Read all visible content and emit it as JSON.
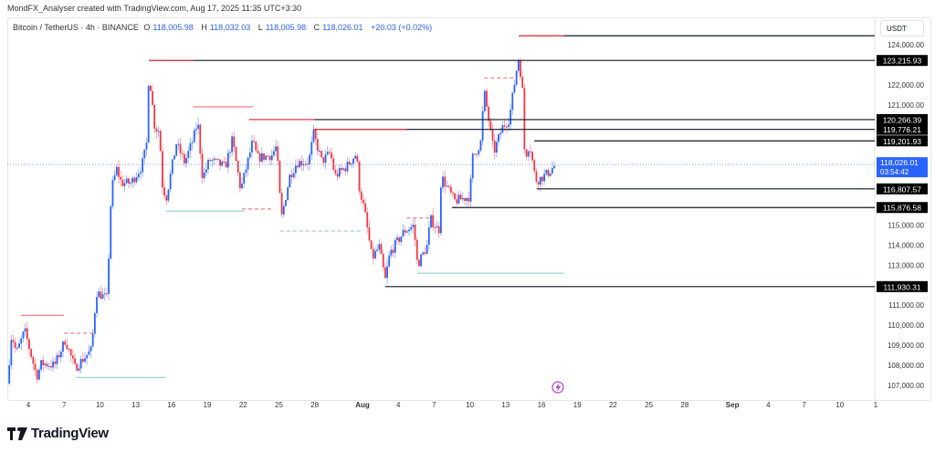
{
  "credit": "MondFX_Analyser created with TradingView.com, Aug 17, 2025 11:35 UTC+3:30",
  "legend": {
    "symbol": "Bitcoin / TetherUS · 4h · BINANCE",
    "o_label": "O",
    "o": "118,005.98",
    "h_label": "H",
    "h": "118,032.03",
    "l_label": "L",
    "l": "118,005.98",
    "c_label": "C",
    "c": "118,026.01",
    "change": "+20.03 (+0.02%)"
  },
  "currency": "USDT",
  "current_price": {
    "value": "118,026.01",
    "countdown": "03:54:42"
  },
  "brand": "TradingView",
  "colors": {
    "up": "#2962ff",
    "down": "#f23645",
    "level": "#131722",
    "teal": "#5fbfae",
    "label_bg": "#000000",
    "current": "#2962ff"
  },
  "chart_data": {
    "type": "candlestick",
    "timeframe": "4h",
    "ylim": [
      106600,
      124700
    ],
    "xlim_days_from_jul1": [
      0.6,
      73.5
    ],
    "price_ticks": [
      "124,000.00",
      "122,000.00",
      "121,000.00",
      "115,000.00",
      "114,000.00",
      "113,000.00",
      "111,000.00",
      "110,000.00",
      "109,000.00",
      "108,000.00",
      "107,000.00"
    ],
    "price_tick_values": [
      124000,
      122000,
      121000,
      115000,
      114000,
      113000,
      111000,
      110000,
      109000,
      108000,
      107000
    ],
    "time_ticks": [
      {
        "label": "4",
        "day": 3
      },
      {
        "label": "7",
        "day": 6
      },
      {
        "label": "10",
        "day": 9
      },
      {
        "label": "13",
        "day": 12
      },
      {
        "label": "16",
        "day": 15
      },
      {
        "label": "19",
        "day": 18
      },
      {
        "label": "22",
        "day": 21
      },
      {
        "label": "25",
        "day": 24
      },
      {
        "label": "28",
        "day": 27
      },
      {
        "label": "Aug",
        "day": 31
      },
      {
        "label": "4",
        "day": 34
      },
      {
        "label": "7",
        "day": 37
      },
      {
        "label": "10",
        "day": 40
      },
      {
        "label": "13",
        "day": 43
      },
      {
        "label": "16",
        "day": 46
      },
      {
        "label": "19",
        "day": 49
      },
      {
        "label": "22",
        "day": 52
      },
      {
        "label": "25",
        "day": 55
      },
      {
        "label": "28",
        "day": 58
      },
      {
        "label": "Sep",
        "day": 62
      },
      {
        "label": "4",
        "day": 65
      },
      {
        "label": "7",
        "day": 68
      },
      {
        "label": "10",
        "day": 71
      },
      {
        "label": "1",
        "day": 74
      }
    ],
    "price_path": [
      [
        1.24,
        107090
      ],
      [
        1.6,
        109600
      ],
      [
        2.0,
        108600
      ],
      [
        2.7,
        109730
      ],
      [
        3.7,
        107450
      ],
      [
        4.1,
        108100
      ],
      [
        5.2,
        108000
      ],
      [
        6.1,
        109280
      ],
      [
        6.9,
        107870
      ],
      [
        8.3,
        108780
      ],
      [
        8.7,
        111650
      ],
      [
        9.6,
        111330
      ],
      [
        9.96,
        116800
      ],
      [
        10.4,
        117800
      ],
      [
        10.8,
        117100
      ],
      [
        11.6,
        117100
      ],
      [
        12.5,
        117940
      ],
      [
        12.9,
        118940
      ],
      [
        13.1,
        122680
      ],
      [
        13.6,
        119850
      ],
      [
        14.0,
        119700
      ],
      [
        14.2,
        117100
      ],
      [
        14.55,
        116340
      ],
      [
        15.4,
        119080
      ],
      [
        16.1,
        118120
      ],
      [
        16.8,
        119260
      ],
      [
        17.2,
        120170
      ],
      [
        17.6,
        117350
      ],
      [
        18.2,
        118260
      ],
      [
        19.5,
        117900
      ],
      [
        20.1,
        119260
      ],
      [
        20.8,
        116750
      ],
      [
        21.8,
        119170
      ],
      [
        22.2,
        118350
      ],
      [
        23.4,
        118490
      ],
      [
        23.8,
        118940
      ],
      [
        24.2,
        115300
      ],
      [
        24.9,
        117440
      ],
      [
        25.5,
        118120
      ],
      [
        26.5,
        118170
      ],
      [
        26.9,
        119530
      ],
      [
        27.6,
        118170
      ],
      [
        28.3,
        118620
      ],
      [
        28.7,
        117440
      ],
      [
        29.7,
        117940
      ],
      [
        30.5,
        118580
      ],
      [
        30.7,
        116980
      ],
      [
        31.2,
        115610
      ],
      [
        31.8,
        113330
      ],
      [
        32.4,
        113920
      ],
      [
        32.9,
        112240
      ],
      [
        33.3,
        113610
      ],
      [
        34.5,
        114700
      ],
      [
        35.3,
        114980
      ],
      [
        35.6,
        113020
      ],
      [
        36.4,
        113920
      ],
      [
        36.7,
        115300
      ],
      [
        37.4,
        114700
      ],
      [
        37.6,
        117440
      ],
      [
        38.7,
        116200
      ],
      [
        40.0,
        116430
      ],
      [
        40.2,
        118350
      ],
      [
        40.9,
        119080
      ],
      [
        41.2,
        121670
      ],
      [
        42.0,
        118620
      ],
      [
        42.7,
        119850
      ],
      [
        43.3,
        120300
      ],
      [
        43.9,
        122720
      ],
      [
        44.1,
        123360
      ],
      [
        44.4,
        121810
      ],
      [
        44.6,
        118350
      ],
      [
        45.0,
        119080
      ],
      [
        45.5,
        117250
      ],
      [
        45.7,
        117250
      ],
      [
        46.5,
        117570
      ],
      [
        47.2,
        118026.01
      ]
    ],
    "levels": [
      {
        "price": 124450,
        "from_day": 44.1,
        "label": "",
        "red_to_day": 47.9
      },
      {
        "price": 123215.93,
        "from_day": 13.1,
        "label": "123,215.93",
        "red_to_day": 16.8
      },
      {
        "price": 120266.39,
        "from_day": 21.5,
        "label": "120,266.39",
        "red_to_day": 27.0
      },
      {
        "price": 119776.21,
        "from_day": 26.9,
        "label": "119,776.21",
        "red_to_day": 34.7
      },
      {
        "price": 119201.93,
        "from_day": 45.4,
        "label": "119,201.93"
      },
      {
        "price": 116807.57,
        "from_day": 45.6,
        "label": "116,807.57"
      },
      {
        "price": 115876.58,
        "from_day": 38.5,
        "label": "115,876.58"
      },
      {
        "price": 111930.31,
        "from_day": 32.9,
        "label": "111,930.31"
      }
    ],
    "marks": [
      {
        "kind": "red",
        "price": 110500,
        "from": 2.4,
        "to": 5.99
      },
      {
        "kind": "red",
        "price": 120900,
        "from": 16.8,
        "to": 21.8
      },
      {
        "kind": "red-dash",
        "price": 109600,
        "from": 6.0,
        "to": 8.7
      },
      {
        "kind": "red-dash",
        "price": 115800,
        "from": 20.9,
        "to": 23.6
      },
      {
        "kind": "red-dash",
        "price": 122350,
        "from": 41.2,
        "to": 43.9
      },
      {
        "kind": "red-dash",
        "price": 115350,
        "from": 34.7,
        "to": 37.0
      },
      {
        "kind": "teal",
        "price": 107400,
        "from": 6.98,
        "to": 14.5
      },
      {
        "kind": "teal",
        "price": 115700,
        "from": 14.55,
        "to": 21.1
      },
      {
        "kind": "teal",
        "price": 112600,
        "from": 35.6,
        "to": 47.9
      },
      {
        "kind": "teal-dash",
        "price": 114700,
        "from": 24.1,
        "to": 31.1
      }
    ]
  }
}
